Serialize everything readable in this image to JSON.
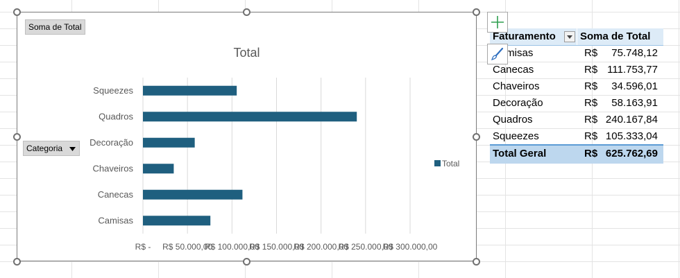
{
  "chart": {
    "title": "Total",
    "values_field_button": "Soma de Total",
    "axis_field_button": "Categoria",
    "legend_label": "Total",
    "bar_color": "#1f5f7f"
  },
  "chart_data": {
    "type": "bar",
    "orientation": "horizontal",
    "title": "Total",
    "categories": [
      "Squeezes",
      "Quadros",
      "Decoração",
      "Chaveiros",
      "Canecas",
      "Camisas"
    ],
    "series": [
      {
        "name": "Total",
        "values": [
          105333.04,
          240167.84,
          58163.91,
          34596.01,
          111753.77,
          75748.12
        ]
      }
    ],
    "xlim": [
      0,
      300000
    ],
    "x_tick_labels": [
      "R$ -",
      "R$ 50.000,00",
      "R$ 100.000,00",
      "R$ 150.000,00",
      "R$ 200.000,00",
      "R$ 250.000,00",
      "R$ 300.000,00"
    ],
    "grid": true,
    "legend": "right"
  },
  "pivot": {
    "header": {
      "row_label": "Faturamento",
      "value_label": "Soma de Total"
    },
    "rows": [
      {
        "label": "Camisas",
        "currency": "R$",
        "value": "75.748,12"
      },
      {
        "label": "Canecas",
        "currency": "R$",
        "value": "111.753,77"
      },
      {
        "label": "Chaveiros",
        "currency": "R$",
        "value": "34.596,01"
      },
      {
        "label": "Decoração",
        "currency": "R$",
        "value": "58.163,91"
      },
      {
        "label": "Quadros",
        "currency": "R$",
        "value": "240.167,84"
      },
      {
        "label": "Squeezes",
        "currency": "R$",
        "value": "105.333,04"
      }
    ],
    "total": {
      "label": "Total Geral",
      "currency": "R$",
      "value": "625.762,69"
    }
  },
  "side_buttons": {
    "add_icon": "plus-icon",
    "style_icon": "brush-icon"
  },
  "colors": {
    "header_bg": "#ddebf7",
    "total_bg": "#bdd7ee",
    "plus_green": "#2e9e4f",
    "brush_blue": "#2f6fbf"
  }
}
